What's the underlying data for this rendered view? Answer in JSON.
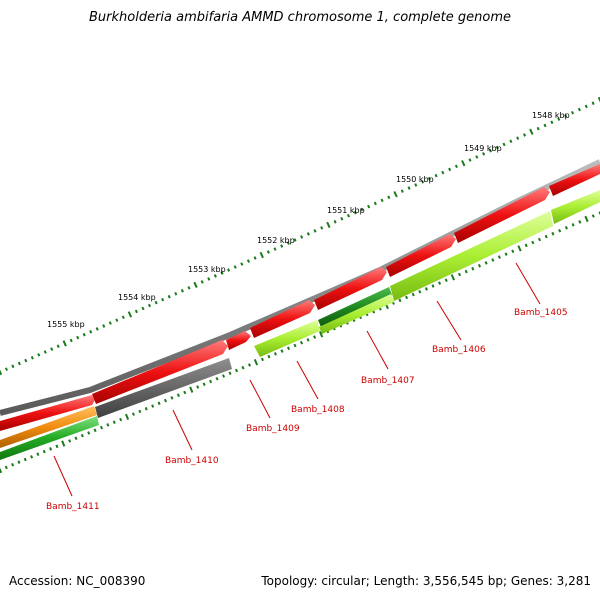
{
  "title": "Burkholderia ambifaria AMMD chromosome 1, complete genome",
  "accession": "Accession: NC_008390",
  "summary": "Topology: circular; Length: 3,556,545 bp; Genes: 3,281",
  "colors": {
    "backbone": "#8a8a8a",
    "red_gene": "#ee1111",
    "dark_green_gene": "#1f8a1f",
    "light_green_gene": "#aaee33",
    "gray_gene": "#666666",
    "orange_gene": "#f08c10",
    "green_gene": "#22aa22",
    "tick": "#1a7a1a",
    "label": "#cc0000"
  },
  "kbp_labels": [
    "1548 kbp",
    "1549 kbp",
    "1550 kbp",
    "1551 kbp",
    "1552 kbp",
    "1553 kbp",
    "1554 kbp",
    "1555 kbp"
  ],
  "gene_labels": [
    "Bamb_1405",
    "Bamb_1406",
    "Bamb_1407",
    "Bamb_1408",
    "Bamb_1409",
    "Bamb_1410",
    "Bamb_1411"
  ]
}
